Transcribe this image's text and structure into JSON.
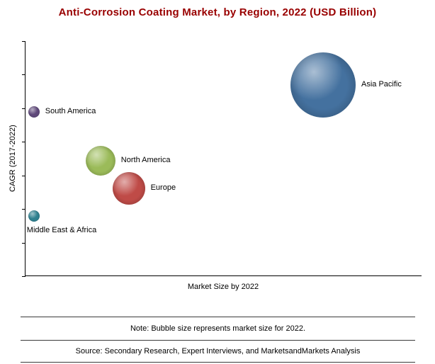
{
  "title": "Anti-Corrosion Coating Market, by Region, 2022 (USD Billion)",
  "axes": {
    "y_label": "CAGR (2017-2022)",
    "x_label": "Market Size by 2022",
    "numeric_tick_labels_visible": false
  },
  "footer": {
    "note": "Note: Bubble size represents market size for 2022.",
    "source": "Source: Secondary Research, Expert Interviews, and MarketsandMarkets Analysis"
  },
  "colors": {
    "title": "#990000",
    "axis": "#000000"
  },
  "chart_data": {
    "type": "scatter",
    "subtype": "bubble",
    "title": "Anti-Corrosion Coating Market, by Region, 2022 (USD Billion)",
    "xlabel": "Market Size by 2022",
    "ylabel": "CAGR (2017-2022)",
    "note": "Bubble size represents market size for 2022",
    "axis_values_labeled": false,
    "grid": false,
    "points": [
      {
        "id": "asia-pacific",
        "label": "Asia Pacific",
        "x_rel": 0.75,
        "cagr_rel": 0.814,
        "r": 46,
        "color": "#44719f",
        "label_position": "right"
      },
      {
        "id": "south-america",
        "label": "South America",
        "x_rel": 0.021,
        "cagr_rel": 0.7,
        "r": 8,
        "color": "#5f497a",
        "label_position": "right"
      },
      {
        "id": "north-america",
        "label": "North America",
        "x_rel": 0.189,
        "cagr_rel": 0.49,
        "r": 21,
        "color": "#9bbb59",
        "label_position": "right"
      },
      {
        "id": "europe",
        "label": "Europe",
        "x_rel": 0.26,
        "cagr_rel": 0.373,
        "r": 23,
        "color": "#bf4b47",
        "label_position": "right"
      },
      {
        "id": "middle-east-africa",
        "label": "Middle East & Africa",
        "x_rel": 0.021,
        "cagr_rel": 0.255,
        "r": 8,
        "color": "#2f808f",
        "label_position": "below"
      }
    ]
  }
}
